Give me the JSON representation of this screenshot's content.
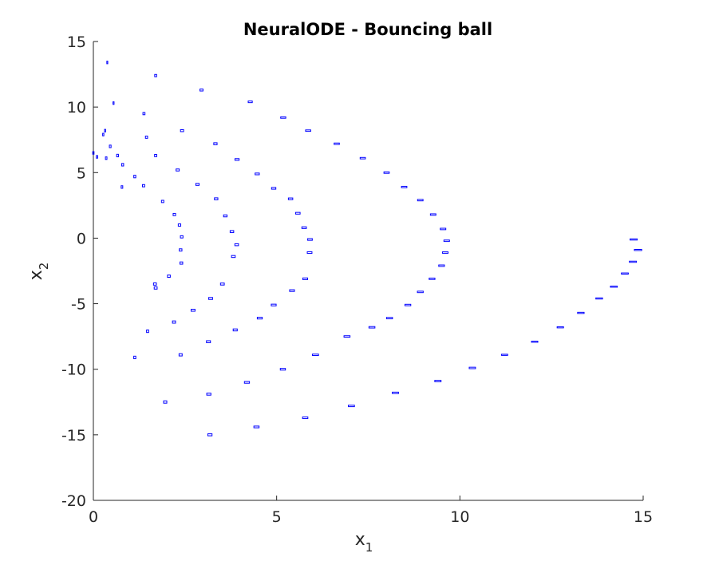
{
  "chart_data": {
    "type": "scatter",
    "title": "NeuralODE - Bouncing ball",
    "xlabel": {
      "base": "x",
      "sub": "1"
    },
    "ylabel": {
      "base": "x",
      "sub": "2"
    },
    "xlim": [
      0,
      15
    ],
    "ylim": [
      -20,
      15
    ],
    "xticks": [
      "0",
      "5",
      "10",
      "15"
    ],
    "yticks": [
      "15",
      "10",
      "5",
      "0",
      "-5",
      "-10",
      "-15",
      "-20"
    ],
    "grid": false,
    "legend": "none",
    "marker_color": "#0000ff",
    "series": [
      {
        "points": [
          [
            0.38,
            13.4
          ],
          [
            0.55,
            10.3
          ],
          [
            0.32,
            8.2
          ],
          [
            0.27,
            7.9
          ],
          [
            0.0,
            6.5
          ],
          [
            0.1,
            6.2
          ],
          [
            0.35,
            6.1
          ],
          [
            0.78,
            3.9
          ],
          [
            0.46,
            7.0
          ],
          [
            0.66,
            6.3
          ],
          [
            0.8,
            5.6
          ],
          [
            1.13,
            4.7
          ],
          [
            1.13,
            -9.1
          ],
          [
            1.48,
            -7.1
          ]
        ]
      },
      {
        "points": [
          [
            1.7,
            12.4
          ],
          [
            1.38,
            9.5
          ],
          [
            1.45,
            7.7
          ],
          [
            1.7,
            6.3
          ],
          [
            1.37,
            4.0
          ],
          [
            1.89,
            2.8
          ],
          [
            2.21,
            1.8
          ],
          [
            2.35,
            1.0
          ],
          [
            2.41,
            0.1
          ],
          [
            2.38,
            -0.9
          ],
          [
            2.4,
            -1.9
          ],
          [
            2.06,
            -2.9
          ],
          [
            1.68,
            -3.5
          ],
          [
            1.7,
            -3.8
          ],
          [
            2.2,
            -6.4
          ],
          [
            2.38,
            -8.9
          ],
          [
            1.96,
            -12.5
          ]
        ]
      },
      {
        "points": [
          [
            2.95,
            11.3
          ],
          [
            2.42,
            8.2
          ],
          [
            2.3,
            5.2
          ],
          [
            2.84,
            4.1
          ],
          [
            3.33,
            7.2
          ],
          [
            3.35,
            3.0
          ],
          [
            3.6,
            1.7
          ],
          [
            3.78,
            0.5
          ],
          [
            3.91,
            -0.5
          ],
          [
            3.82,
            -1.4
          ],
          [
            3.52,
            -3.5
          ],
          [
            3.2,
            -4.6
          ],
          [
            2.72,
            -5.5
          ],
          [
            3.14,
            -7.9
          ],
          [
            3.87,
            -7.0
          ],
          [
            3.15,
            -11.9
          ],
          [
            3.18,
            -15.0
          ]
        ]
      },
      {
        "points": [
          [
            4.28,
            10.4
          ],
          [
            3.92,
            6.0
          ],
          [
            4.47,
            4.9
          ],
          [
            4.92,
            3.8
          ],
          [
            5.38,
            3.0
          ],
          [
            5.58,
            1.9
          ],
          [
            5.75,
            0.8
          ],
          [
            5.91,
            -0.1
          ],
          [
            5.9,
            -1.1
          ],
          [
            5.78,
            -3.1
          ],
          [
            5.42,
            -4.0
          ],
          [
            4.92,
            -5.1
          ],
          [
            4.54,
            -6.1
          ],
          [
            4.19,
            -11.0
          ],
          [
            5.17,
            -10.0
          ],
          [
            4.45,
            -14.4
          ],
          [
            5.78,
            -13.7
          ]
        ]
      },
      {
        "points": [
          [
            5.18,
            9.2
          ],
          [
            5.86,
            8.2
          ],
          [
            6.64,
            7.2
          ],
          [
            7.35,
            6.1
          ],
          [
            8.0,
            5.0
          ],
          [
            8.48,
            3.9
          ],
          [
            8.92,
            2.9
          ],
          [
            9.27,
            1.8
          ],
          [
            9.54,
            0.7
          ],
          [
            9.64,
            -0.2
          ],
          [
            9.6,
            -1.1
          ],
          [
            9.5,
            -2.1
          ],
          [
            9.24,
            -3.1
          ],
          [
            8.92,
            -4.1
          ],
          [
            8.58,
            -5.1
          ],
          [
            8.08,
            -6.1
          ],
          [
            7.6,
            -6.8
          ],
          [
            6.92,
            -7.5
          ],
          [
            6.06,
            -8.9
          ],
          [
            7.04,
            -12.8
          ],
          [
            8.24,
            -11.8
          ],
          [
            9.4,
            -10.9
          ],
          [
            10.34,
            -9.9
          ]
        ]
      },
      {
        "points": [
          [
            11.22,
            -8.9
          ],
          [
            12.04,
            -7.9
          ],
          [
            12.74,
            -6.8
          ],
          [
            13.3,
            -5.7
          ],
          [
            13.8,
            -4.6
          ],
          [
            14.2,
            -3.7
          ],
          [
            14.5,
            -2.7
          ],
          [
            14.72,
            -1.8
          ],
          [
            14.74,
            -0.1
          ],
          [
            14.86,
            -0.9
          ]
        ]
      }
    ]
  }
}
